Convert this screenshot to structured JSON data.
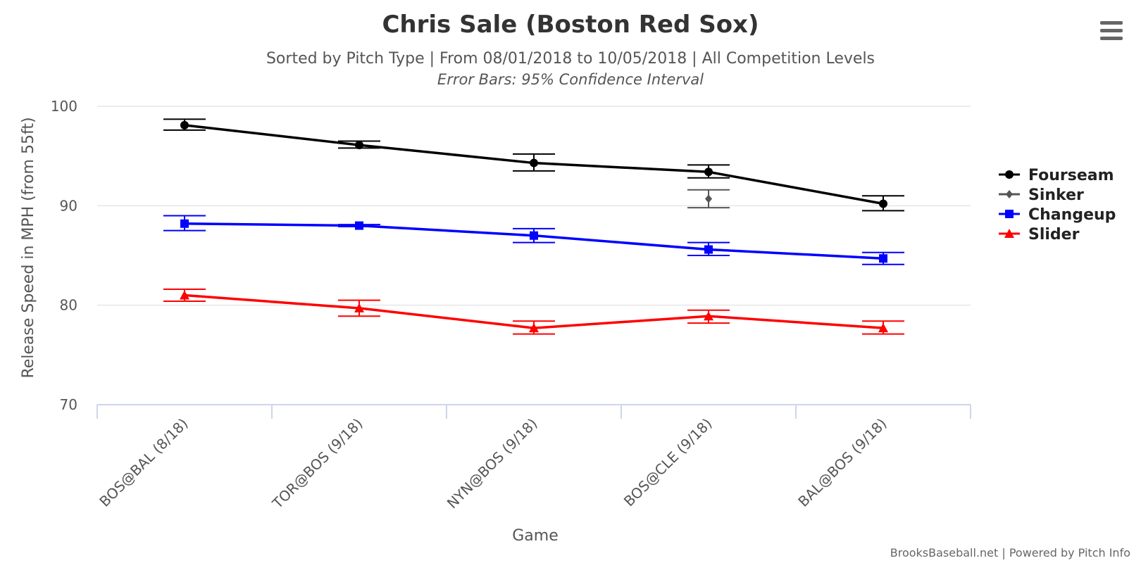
{
  "chart_data": {
    "type": "line",
    "title": "Chris Sale (Boston Red Sox)",
    "subtitle": "Sorted by Pitch Type | From 08/01/2018 to 10/05/2018 | All Competition Levels",
    "subtitle2": "Error Bars: 95% Confidence Interval",
    "xlabel": "Game",
    "ylabel": "Release Speed in MPH (from 55ft)",
    "ylim": [
      70,
      100
    ],
    "yticks": [
      70,
      80,
      90,
      100
    ],
    "categories": [
      "BOS@BAL (8/18)",
      "TOR@BOS (9/18)",
      "NYN@BOS (9/18)",
      "BOS@CLE (9/18)",
      "BAL@BOS (9/18)"
    ],
    "legend_position": "right",
    "series": [
      {
        "name": "Fourseam",
        "color": "#000000",
        "marker": "circle",
        "line": true,
        "values": [
          98.1,
          96.1,
          94.3,
          93.4,
          90.2
        ],
        "error_low": [
          97.6,
          95.8,
          93.5,
          92.8,
          89.5
        ],
        "error_high": [
          98.7,
          96.5,
          95.2,
          94.1,
          91.0
        ]
      },
      {
        "name": "Sinker",
        "color": "#555555",
        "marker": "diamond",
        "line": false,
        "values": [
          null,
          null,
          null,
          90.7,
          null
        ],
        "error_low": [
          null,
          null,
          null,
          89.8,
          null
        ],
        "error_high": [
          null,
          null,
          null,
          91.6,
          null
        ]
      },
      {
        "name": "Changeup",
        "color": "#0000ff",
        "marker": "square",
        "line": true,
        "values": [
          88.2,
          88.0,
          87.0,
          85.6,
          84.7
        ],
        "error_low": [
          87.5,
          87.9,
          86.3,
          85.0,
          84.1
        ],
        "error_high": [
          89.0,
          88.1,
          87.7,
          86.3,
          85.3
        ]
      },
      {
        "name": "Slider",
        "color": "#ff0000",
        "marker": "triangle",
        "line": true,
        "values": [
          81.0,
          79.7,
          77.7,
          78.9,
          77.7
        ],
        "error_low": [
          80.4,
          78.9,
          77.1,
          78.2,
          77.1
        ],
        "error_high": [
          81.6,
          80.5,
          78.4,
          79.5,
          78.4
        ]
      }
    ],
    "credits": "BrooksBaseball.net | Powered by Pitch Info"
  },
  "menu": {
    "icon": "hamburger-menu-icon"
  },
  "colors": {
    "grid": "#e6e6e6",
    "axis": "#ccd6eb"
  }
}
